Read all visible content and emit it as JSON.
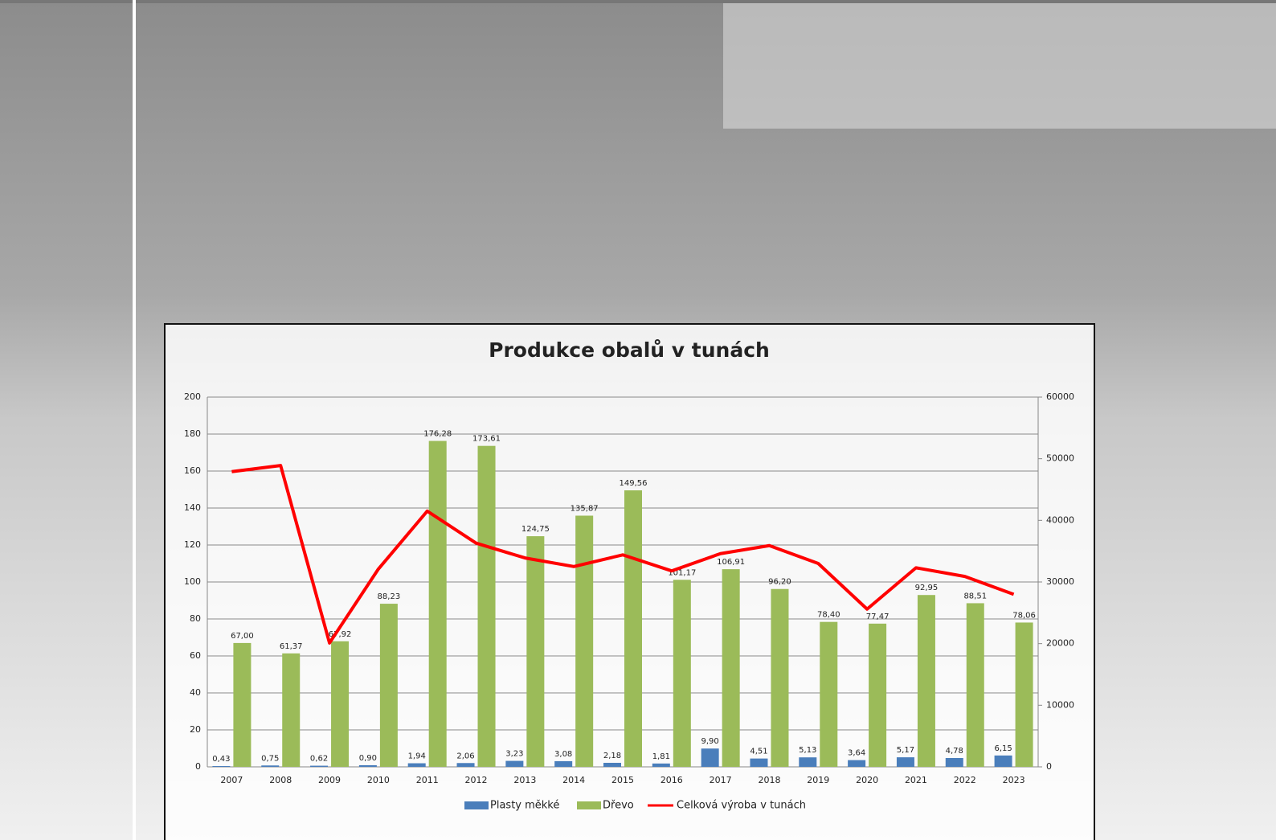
{
  "chart_data": {
    "type": "bar",
    "title": "Produkce obalů v tunách",
    "categories": [
      "2007",
      "2008",
      "2009",
      "2010",
      "2011",
      "2012",
      "2013",
      "2014",
      "2015",
      "2016",
      "2017",
      "2018",
      "2019",
      "2020",
      "2021",
      "2022",
      "2023"
    ],
    "series": [
      {
        "name": "Plasty měkké",
        "color": "#4a7ebb",
        "type": "bar",
        "values": [
          0.43,
          0.75,
          0.62,
          0.9,
          1.94,
          2.06,
          3.23,
          3.08,
          2.18,
          1.81,
          9.9,
          4.51,
          5.13,
          3.64,
          5.17,
          4.78,
          6.15
        ],
        "value_labels": [
          "0,43",
          "0,75",
          "0,62",
          "0,90",
          "1,94",
          "2,06",
          "3,23",
          "3,08",
          "2,18",
          "1,81",
          "9,90",
          "4,51",
          "5,13",
          "3,64",
          "5,17",
          "4,78",
          "6,15"
        ]
      },
      {
        "name": "Dřevo",
        "color": "#9bbb59",
        "type": "bar",
        "values": [
          67.0,
          61.37,
          67.92,
          88.23,
          176.28,
          173.61,
          124.75,
          135.87,
          149.56,
          101.17,
          106.91,
          96.2,
          78.4,
          77.47,
          92.95,
          88.51,
          78.06
        ],
        "value_labels": [
          "67,00",
          "61,37",
          "67,92",
          "88,23",
          "176,28",
          "173,61",
          "124,75",
          "135,87",
          "149,56",
          "101,17",
          "106,91",
          "96,20",
          "78,40",
          "77,47",
          "92,95",
          "88,51",
          "78,06"
        ]
      },
      {
        "name": "Celková výroba v tunách",
        "color": "#ff0000",
        "type": "line",
        "axis": "y2",
        "values": [
          47900,
          48900,
          20100,
          32100,
          41500,
          36300,
          33900,
          32500,
          34400,
          31800,
          34600,
          35900,
          33000,
          25600,
          32300,
          30900,
          28000
        ]
      }
    ],
    "ylim": [
      0,
      200
    ],
    "yticks": [
      0,
      20,
      40,
      60,
      80,
      100,
      120,
      140,
      160,
      180,
      200
    ],
    "y2lim": [
      0,
      60000
    ],
    "y2ticks": [
      0,
      10000,
      20000,
      30000,
      40000,
      50000,
      60000
    ],
    "grid": true,
    "legend": "bottom"
  }
}
